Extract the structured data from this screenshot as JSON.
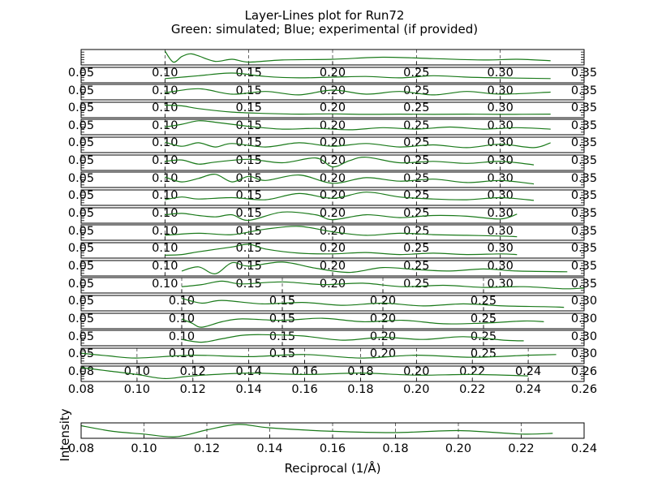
{
  "figure": {
    "title_line1": "Layer-Lines plot for Run72",
    "title_line2": "Green: simulated; Blue; experimental (if provided)",
    "xlabel": "Reciprocal (1/Å)",
    "ylabel": "Intensity",
    "colors": {
      "simulated": "#1a7a1a",
      "experimental": "#1f3f9f",
      "grid": "#000000"
    }
  },
  "chart_data": {
    "type": "line",
    "title": "Layer-Lines plot for Run72",
    "subtitle": "Green: simulated; Blue; experimental (if provided)",
    "xlabel": "Reciprocal (1/Å)",
    "ylabel": "Intensity",
    "grid": true,
    "xlim": [
      0.08,
      0.24
    ],
    "xticks": [
      0.08,
      0.1,
      0.12,
      0.14,
      0.16,
      0.18,
      0.2,
      0.22,
      0.24
    ],
    "xtick_labels": [
      "0.08",
      "0.10",
      "0.12",
      "0.14",
      "0.16",
      "0.18",
      "0.20",
      "0.22",
      "0.24"
    ],
    "row_tick_sets": [
      {
        "ticks": [
          0.05,
          0.1,
          0.15,
          0.2,
          0.25,
          0.3,
          0.35
        ],
        "labels": [
          "0.05",
          "0.10",
          "0.15",
          "0.20",
          "0.25",
          "0.30",
          "0.35"
        ],
        "xlim": [
          0.05,
          0.35
        ]
      },
      {
        "ticks": [
          0.05,
          0.1,
          0.15,
          0.2,
          0.25,
          0.3
        ],
        "labels": [
          "0.05",
          "0.10",
          "0.15",
          "0.20",
          "0.25",
          "0.30"
        ],
        "xlim": [
          0.05,
          0.3
        ]
      },
      {
        "ticks": [
          0.08,
          0.1,
          0.12,
          0.14,
          0.16,
          0.18,
          0.2,
          0.22,
          0.24,
          0.26
        ],
        "labels": [
          "0.08",
          "0.10",
          "0.12",
          "0.14",
          "0.16",
          "0.18",
          "0.20",
          "0.22",
          "0.24",
          "0.26"
        ],
        "xlim": [
          0.08,
          0.26
        ]
      }
    ],
    "layer_lines": [
      {
        "tickset": 0,
        "x": [
          0.1,
          0.105,
          0.11,
          0.115,
          0.12,
          0.13,
          0.14,
          0.15,
          0.17,
          0.2,
          0.23,
          0.26,
          0.29,
          0.31,
          0.33
        ],
        "y": [
          0.95,
          0.15,
          0.55,
          0.75,
          0.6,
          0.2,
          0.35,
          0.15,
          0.3,
          0.35,
          0.5,
          0.4,
          0.3,
          0.35,
          0.25
        ]
      },
      {
        "tickset": 0,
        "x": [
          0.1,
          0.12,
          0.14,
          0.16,
          0.18,
          0.2,
          0.22,
          0.24,
          0.26,
          0.28,
          0.3,
          0.33
        ],
        "y": [
          0.25,
          0.45,
          0.65,
          0.4,
          0.3,
          0.35,
          0.4,
          0.3,
          0.45,
          0.35,
          0.3,
          0.25
        ]
      },
      {
        "tickset": 0,
        "x": [
          0.1,
          0.12,
          0.14,
          0.16,
          0.18,
          0.2,
          0.22,
          0.24,
          0.26,
          0.28,
          0.3,
          0.33
        ],
        "y": [
          0.45,
          0.75,
          0.35,
          0.55,
          0.3,
          0.65,
          0.35,
          0.55,
          0.3,
          0.55,
          0.35,
          0.5
        ]
      },
      {
        "tickset": 0,
        "x": [
          0.1,
          0.11,
          0.12,
          0.14,
          0.16,
          0.18,
          0.2,
          0.22,
          0.24,
          0.26,
          0.28,
          0.3,
          0.33
        ],
        "y": [
          0.85,
          0.8,
          0.6,
          0.35,
          0.25,
          0.2,
          0.22,
          0.18,
          0.2,
          0.18,
          0.2,
          0.18,
          0.2
        ]
      },
      {
        "tickset": 0,
        "x": [
          0.1,
          0.11,
          0.12,
          0.13,
          0.15,
          0.17,
          0.19,
          0.21,
          0.23,
          0.25,
          0.27,
          0.29,
          0.31,
          0.33
        ],
        "y": [
          0.5,
          0.7,
          0.95,
          0.85,
          0.55,
          0.35,
          0.4,
          0.3,
          0.45,
          0.35,
          0.5,
          0.35,
          0.45,
          0.35
        ]
      },
      {
        "tickset": 0,
        "x": [
          0.1,
          0.11,
          0.12,
          0.13,
          0.14,
          0.16,
          0.18,
          0.2,
          0.22,
          0.24,
          0.26,
          0.28,
          0.3,
          0.32,
          0.33
        ],
        "y": [
          0.7,
          0.4,
          0.65,
          0.35,
          0.6,
          0.35,
          0.65,
          0.4,
          0.6,
          0.35,
          0.5,
          0.3,
          0.55,
          0.3,
          0.65
        ]
      },
      {
        "tickset": 0,
        "x": [
          0.1,
          0.11,
          0.12,
          0.13,
          0.15,
          0.17,
          0.19,
          0.2,
          0.21,
          0.22,
          0.24,
          0.26,
          0.28,
          0.3,
          0.32
        ],
        "y": [
          0.6,
          0.7,
          0.4,
          0.55,
          0.75,
          0.5,
          0.85,
          0.2,
          0.65,
          0.9,
          0.5,
          0.6,
          0.45,
          0.6,
          0.35
        ]
      },
      {
        "tickset": 0,
        "x": [
          0.1,
          0.11,
          0.12,
          0.13,
          0.14,
          0.15,
          0.16,
          0.18,
          0.2,
          0.22,
          0.24,
          0.26,
          0.28,
          0.3,
          0.32
        ],
        "y": [
          0.7,
          0.35,
          0.6,
          0.9,
          0.35,
          0.75,
          0.45,
          0.85,
          0.25,
          0.65,
          0.4,
          0.55,
          0.3,
          0.45,
          0.2
        ]
      },
      {
        "tickset": 0,
        "x": [
          0.1,
          0.11,
          0.12,
          0.14,
          0.16,
          0.18,
          0.2,
          0.22,
          0.24,
          0.26,
          0.28,
          0.3,
          0.32
        ],
        "y": [
          0.35,
          0.55,
          0.4,
          0.5,
          0.35,
          0.8,
          0.45,
          0.9,
          0.55,
          0.4,
          0.35,
          0.5,
          0.3
        ]
      },
      {
        "tickset": 0,
        "x": [
          0.1,
          0.11,
          0.12,
          0.13,
          0.14,
          0.15,
          0.17,
          0.19,
          0.2,
          0.22,
          0.24,
          0.26,
          0.28,
          0.3,
          0.31
        ],
        "y": [
          0.55,
          0.65,
          0.5,
          0.4,
          0.55,
          0.15,
          0.75,
          0.55,
          0.2,
          0.55,
          0.35,
          0.5,
          0.45,
          0.25,
          0.6
        ]
      },
      {
        "tickset": 0,
        "x": [
          0.1,
          0.12,
          0.14,
          0.16,
          0.18,
          0.2,
          0.22,
          0.24,
          0.26,
          0.28,
          0.3,
          0.31
        ],
        "y": [
          0.3,
          0.45,
          0.35,
          0.75,
          0.95,
          0.55,
          0.3,
          0.45,
          0.35,
          0.3,
          0.25,
          0.2
        ]
      },
      {
        "tickset": 0,
        "x": [
          0.1,
          0.11,
          0.12,
          0.14,
          0.15,
          0.16,
          0.18,
          0.2,
          0.22,
          0.24,
          0.26,
          0.28,
          0.3,
          0.31
        ],
        "y": [
          0.15,
          0.2,
          0.4,
          0.75,
          0.95,
          0.6,
          0.3,
          0.25,
          0.35,
          0.2,
          0.3,
          0.2,
          0.25,
          0.2
        ]
      },
      {
        "tickset": 0,
        "x": [
          0.11,
          0.12,
          0.13,
          0.14,
          0.15,
          0.17,
          0.19,
          0.21,
          0.23,
          0.25,
          0.27,
          0.29,
          0.31,
          0.34
        ],
        "y": [
          0.3,
          0.6,
          0.1,
          0.9,
          0.65,
          0.95,
          0.5,
          0.2,
          0.55,
          0.4,
          0.3,
          0.45,
          0.3,
          0.25
        ]
      },
      {
        "tickset": 1,
        "x": [
          0.1,
          0.11,
          0.12,
          0.13,
          0.15,
          0.17,
          0.19,
          0.21,
          0.23,
          0.25,
          0.27,
          0.29,
          0.3
        ],
        "y": [
          0.4,
          0.55,
          0.8,
          0.6,
          0.75,
          0.55,
          0.65,
          0.4,
          0.5,
          0.35,
          0.4,
          0.25,
          0.3
        ]
      },
      {
        "tickset": 1,
        "x": [
          0.1,
          0.11,
          0.12,
          0.14,
          0.16,
          0.18,
          0.2,
          0.22,
          0.24,
          0.26,
          0.28,
          0.29
        ],
        "y": [
          0.85,
          0.5,
          0.7,
          0.45,
          0.55,
          0.35,
          0.5,
          0.3,
          0.45,
          0.3,
          0.25,
          0.2
        ]
      },
      {
        "tickset": 1,
        "x": [
          0.1,
          0.105,
          0.11,
          0.12,
          0.13,
          0.15,
          0.17,
          0.19,
          0.21,
          0.23,
          0.25,
          0.27,
          0.28
        ],
        "y": [
          0.65,
          0.35,
          0.05,
          0.45,
          0.65,
          0.55,
          0.7,
          0.45,
          0.55,
          0.3,
          0.35,
          0.5,
          0.45
        ]
      },
      {
        "tickset": 1,
        "x": [
          0.1,
          0.11,
          0.12,
          0.13,
          0.14,
          0.16,
          0.18,
          0.2,
          0.22,
          0.24,
          0.26,
          0.27
        ],
        "y": [
          0.4,
          0.2,
          0.45,
          0.7,
          0.75,
          0.65,
          0.35,
          0.55,
          0.4,
          0.6,
          0.35,
          0.3
        ]
      },
      {
        "tickset": 2,
        "x": [
          0.08,
          0.09,
          0.1,
          0.12,
          0.14,
          0.16,
          0.18,
          0.2,
          0.22,
          0.24,
          0.25
        ],
        "y": [
          0.7,
          0.5,
          0.35,
          0.55,
          0.45,
          0.6,
          0.35,
          0.55,
          0.4,
          0.55,
          0.6
        ]
      },
      {
        "tickset": 2,
        "x": [
          0.08,
          0.09,
          0.1,
          0.11,
          0.12,
          0.14,
          0.16,
          0.18,
          0.2,
          0.22,
          0.24
        ],
        "y": [
          0.95,
          0.7,
          0.45,
          0.15,
          0.35,
          0.55,
          0.45,
          0.55,
          0.4,
          0.45,
          0.35
        ]
      },
      {
        "tickset": -1,
        "x": [
          0.08,
          0.09,
          0.1,
          0.11,
          0.12,
          0.13,
          0.14,
          0.16,
          0.18,
          0.2,
          0.22,
          0.23
        ],
        "y": [
          0.85,
          0.45,
          0.25,
          0.05,
          0.55,
          0.95,
          0.7,
          0.45,
          0.35,
          0.5,
          0.25,
          0.3
        ]
      }
    ]
  }
}
